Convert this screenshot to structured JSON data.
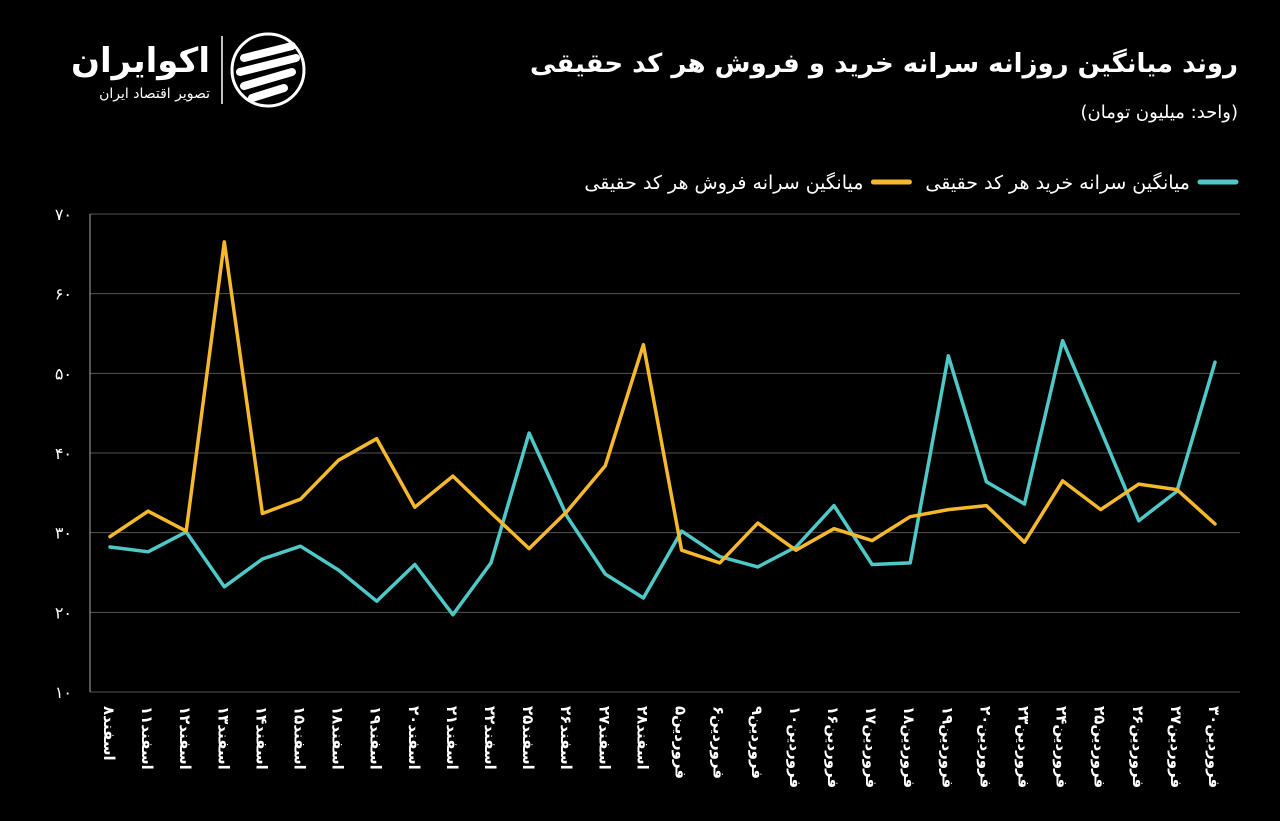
{
  "brand": {
    "name": "اکوایران",
    "tagline": "تصویر اقتصاد ایران"
  },
  "chart_data": {
    "type": "line",
    "title": "روند میانگین روزانه سرانه خرید و فروش هر کد حقیقی",
    "subtitle": "(واحد: میلیون تومان)",
    "categories": [
      "اسفند۸",
      "اسفند۱۱",
      "اسفند۱۲",
      "اسفند۱۳",
      "اسفند۱۴",
      "اسفند۱۵",
      "اسفند۱۸",
      "اسفند۱۹",
      "اسفند۲۰",
      "اسفند۲۱",
      "اسفند۲۲",
      "اسفند۲۵",
      "اسفند۲۶",
      "اسفند۲۷",
      "اسفند۲۸",
      "فروردین۵",
      "فروردین۶",
      "فروردین۹",
      "فروردین۱۰",
      "فروردین۱۶",
      "فروردین۱۷",
      "فروردین۱۸",
      "فروردین۱۹",
      "فروردین۲۰",
      "فروردین۲۳",
      "فروردین۲۴",
      "فروردین۲۵",
      "فروردین۲۶",
      "فروردین۲۷",
      "فروردین۳۰"
    ],
    "series": [
      {
        "name": "میانگین سرانه خرید هر کد حقیقی",
        "color": "#4fc8c8",
        "values": [
          28.2,
          27.6,
          30.1,
          23.2,
          26.7,
          28.3,
          25.3,
          21.4,
          26.0,
          19.7,
          26.2,
          42.5,
          32.0,
          24.8,
          21.8,
          30.2,
          27.0,
          25.7,
          28.2,
          33.4,
          26.0,
          26.2,
          52.2,
          36.4,
          33.6,
          54.1,
          42.9,
          31.5,
          35.2,
          51.4
        ]
      },
      {
        "name": "میانگین سرانه فروش هر کد حقیقی",
        "color": "#f6b92c",
        "values": [
          29.5,
          32.7,
          30.2,
          66.5,
          32.4,
          34.2,
          39.1,
          41.8,
          33.2,
          37.1,
          32.5,
          28.0,
          32.7,
          38.4,
          53.6,
          27.8,
          26.2,
          31.2,
          27.8,
          30.5,
          29.0,
          32.0,
          32.9,
          33.4,
          28.8,
          36.5,
          32.9,
          36.1,
          35.4,
          31.1
        ]
      }
    ],
    "ylim": [
      10,
      70
    ],
    "yticks": [
      {
        "value": 10,
        "label": "۱۰"
      },
      {
        "value": 20,
        "label": "۲۰"
      },
      {
        "value": 30,
        "label": "۳۰"
      },
      {
        "value": 40,
        "label": "۴۰"
      },
      {
        "value": 50,
        "label": "۵۰"
      },
      {
        "value": 60,
        "label": "۶۰"
      },
      {
        "value": 70,
        "label": "۷۰"
      }
    ],
    "grid": true
  }
}
